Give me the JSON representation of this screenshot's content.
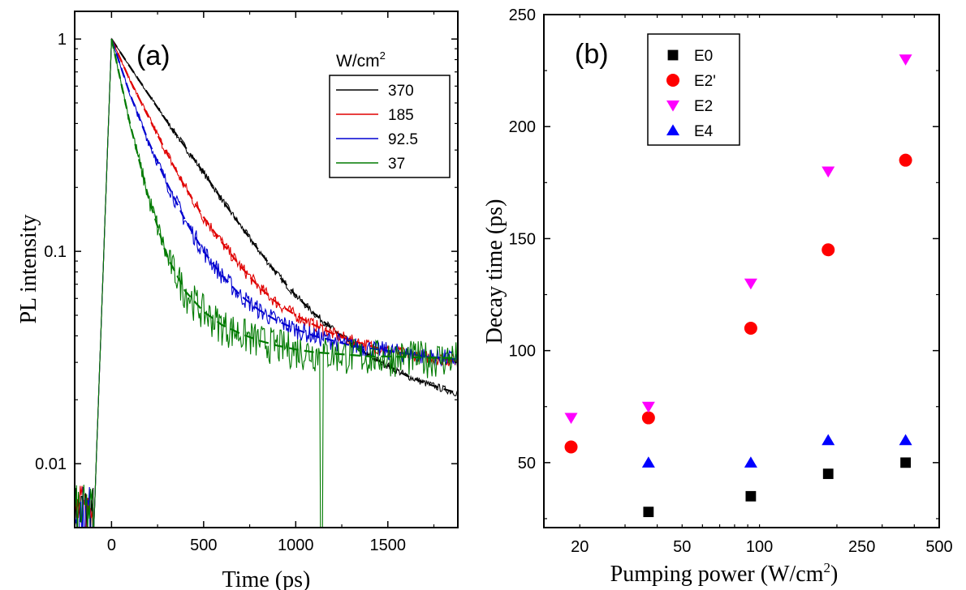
{
  "chart_data": [
    {
      "type": "line",
      "panel_label": "(a)",
      "xlabel": "Time (ps)",
      "ylabel": "PL intensity",
      "xlim": [
        -200,
        1880
      ],
      "ylim": [
        0.005,
        1.35
      ],
      "yscale": "log",
      "grid": false,
      "x_ticks": [
        0,
        500,
        1000,
        1500
      ],
      "y_ticks": [
        0.01,
        0.1,
        1
      ],
      "y_tick_labels": [
        "0.01",
        "0.1",
        "1"
      ],
      "legend": {
        "placement": "top-right",
        "title": "W/cm",
        "title_superscript": "2"
      },
      "series": [
        {
          "name": "370",
          "color": "#000000",
          "points": [
            [
              0,
              1
            ],
            [
              100,
              0.74
            ],
            [
              200,
              0.55
            ],
            [
              300,
              0.41
            ],
            [
              400,
              0.31
            ],
            [
              500,
              0.235
            ],
            [
              600,
              0.175
            ],
            [
              700,
              0.132
            ],
            [
              800,
              0.101
            ],
            [
              900,
              0.078
            ],
            [
              1000,
              0.062
            ],
            [
              1100,
              0.051
            ],
            [
              1200,
              0.043
            ],
            [
              1300,
              0.037
            ],
            [
              1400,
              0.032
            ],
            [
              1500,
              0.029
            ],
            [
              1600,
              0.026
            ],
            [
              1700,
              0.024
            ],
            [
              1800,
              0.0225
            ],
            [
              1880,
              0.0215
            ]
          ]
        },
        {
          "name": "185",
          "color": "#e00000",
          "points": [
            [
              0,
              1
            ],
            [
              100,
              0.64
            ],
            [
              200,
              0.43
            ],
            [
              300,
              0.29
            ],
            [
              400,
              0.2
            ],
            [
              500,
              0.145
            ],
            [
              600,
              0.11
            ],
            [
              700,
              0.085
            ],
            [
              800,
              0.068
            ],
            [
              900,
              0.057
            ],
            [
              1000,
              0.05
            ],
            [
              1100,
              0.045
            ],
            [
              1200,
              0.041
            ],
            [
              1300,
              0.038
            ],
            [
              1400,
              0.036
            ],
            [
              1500,
              0.034
            ],
            [
              1600,
              0.033
            ],
            [
              1700,
              0.032
            ],
            [
              1800,
              0.031
            ],
            [
              1880,
              0.0305
            ]
          ]
        },
        {
          "name": "92.5",
          "color": "#0000d0",
          "points": [
            [
              0,
              1
            ],
            [
              100,
              0.55
            ],
            [
              200,
              0.33
            ],
            [
              300,
              0.21
            ],
            [
              400,
              0.14
            ],
            [
              500,
              0.1
            ],
            [
              600,
              0.077
            ],
            [
              700,
              0.062
            ],
            [
              800,
              0.053
            ],
            [
              900,
              0.047
            ],
            [
              1000,
              0.043
            ],
            [
              1100,
              0.04
            ],
            [
              1200,
              0.038
            ],
            [
              1300,
              0.036
            ],
            [
              1400,
              0.035
            ],
            [
              1500,
              0.034
            ],
            [
              1600,
              0.033
            ],
            [
              1700,
              0.032
            ],
            [
              1800,
              0.0315
            ],
            [
              1880,
              0.031
            ]
          ]
        },
        {
          "name": "37",
          "color": "#007a00",
          "points": [
            [
              0,
              1
            ],
            [
              100,
              0.4
            ],
            [
              200,
              0.18
            ],
            [
              300,
              0.095
            ],
            [
              400,
              0.065
            ],
            [
              500,
              0.052
            ],
            [
              600,
              0.045
            ],
            [
              700,
              0.041
            ],
            [
              800,
              0.038
            ],
            [
              900,
              0.036
            ],
            [
              1000,
              0.0345
            ],
            [
              1100,
              0.0335
            ],
            [
              1200,
              0.033
            ],
            [
              1300,
              0.0325
            ],
            [
              1400,
              0.032
            ],
            [
              1500,
              0.032
            ],
            [
              1600,
              0.0318
            ],
            [
              1700,
              0.0316
            ],
            [
              1800,
              0.0315
            ],
            [
              1880,
              0.0315
            ]
          ]
        }
      ]
    },
    {
      "type": "scatter",
      "panel_label": "(b)",
      "xlabel": "Pumping power (W/cm",
      "xlabel_superscript": "2",
      "xlabel_suffix": ")",
      "ylabel": "Decay time (ps)",
      "xscale": "log",
      "xlim": [
        14.5,
        500
      ],
      "ylim": [
        21,
        250
      ],
      "grid": false,
      "x_ticks": [
        20,
        50,
        100,
        250,
        500
      ],
      "y_ticks": [
        50,
        100,
        150,
        200,
        250
      ],
      "legend": {
        "placement": "top-left"
      },
      "series": [
        {
          "name": "E0",
          "marker": "square",
          "color": "#000000",
          "points": [
            [
              37,
              28
            ],
            [
              92.5,
              35
            ],
            [
              185,
              45
            ],
            [
              370,
              50
            ]
          ]
        },
        {
          "name": "E2'",
          "marker": "circle",
          "color": "#ff0000",
          "points": [
            [
              18.5,
              57
            ],
            [
              37,
              70
            ],
            [
              92.5,
              110
            ],
            [
              185,
              145
            ],
            [
              370,
              185
            ]
          ]
        },
        {
          "name": "E2",
          "marker": "triangle-down",
          "color": "#ff00ff",
          "points": [
            [
              18.5,
              70
            ],
            [
              37,
              75
            ],
            [
              92.5,
              130
            ],
            [
              185,
              180
            ],
            [
              370,
              230
            ]
          ]
        },
        {
          "name": "E4",
          "marker": "triangle-up",
          "color": "#0000ff",
          "points": [
            [
              37,
              50
            ],
            [
              92.5,
              50
            ],
            [
              185,
              60
            ],
            [
              370,
              60
            ]
          ]
        }
      ]
    }
  ]
}
